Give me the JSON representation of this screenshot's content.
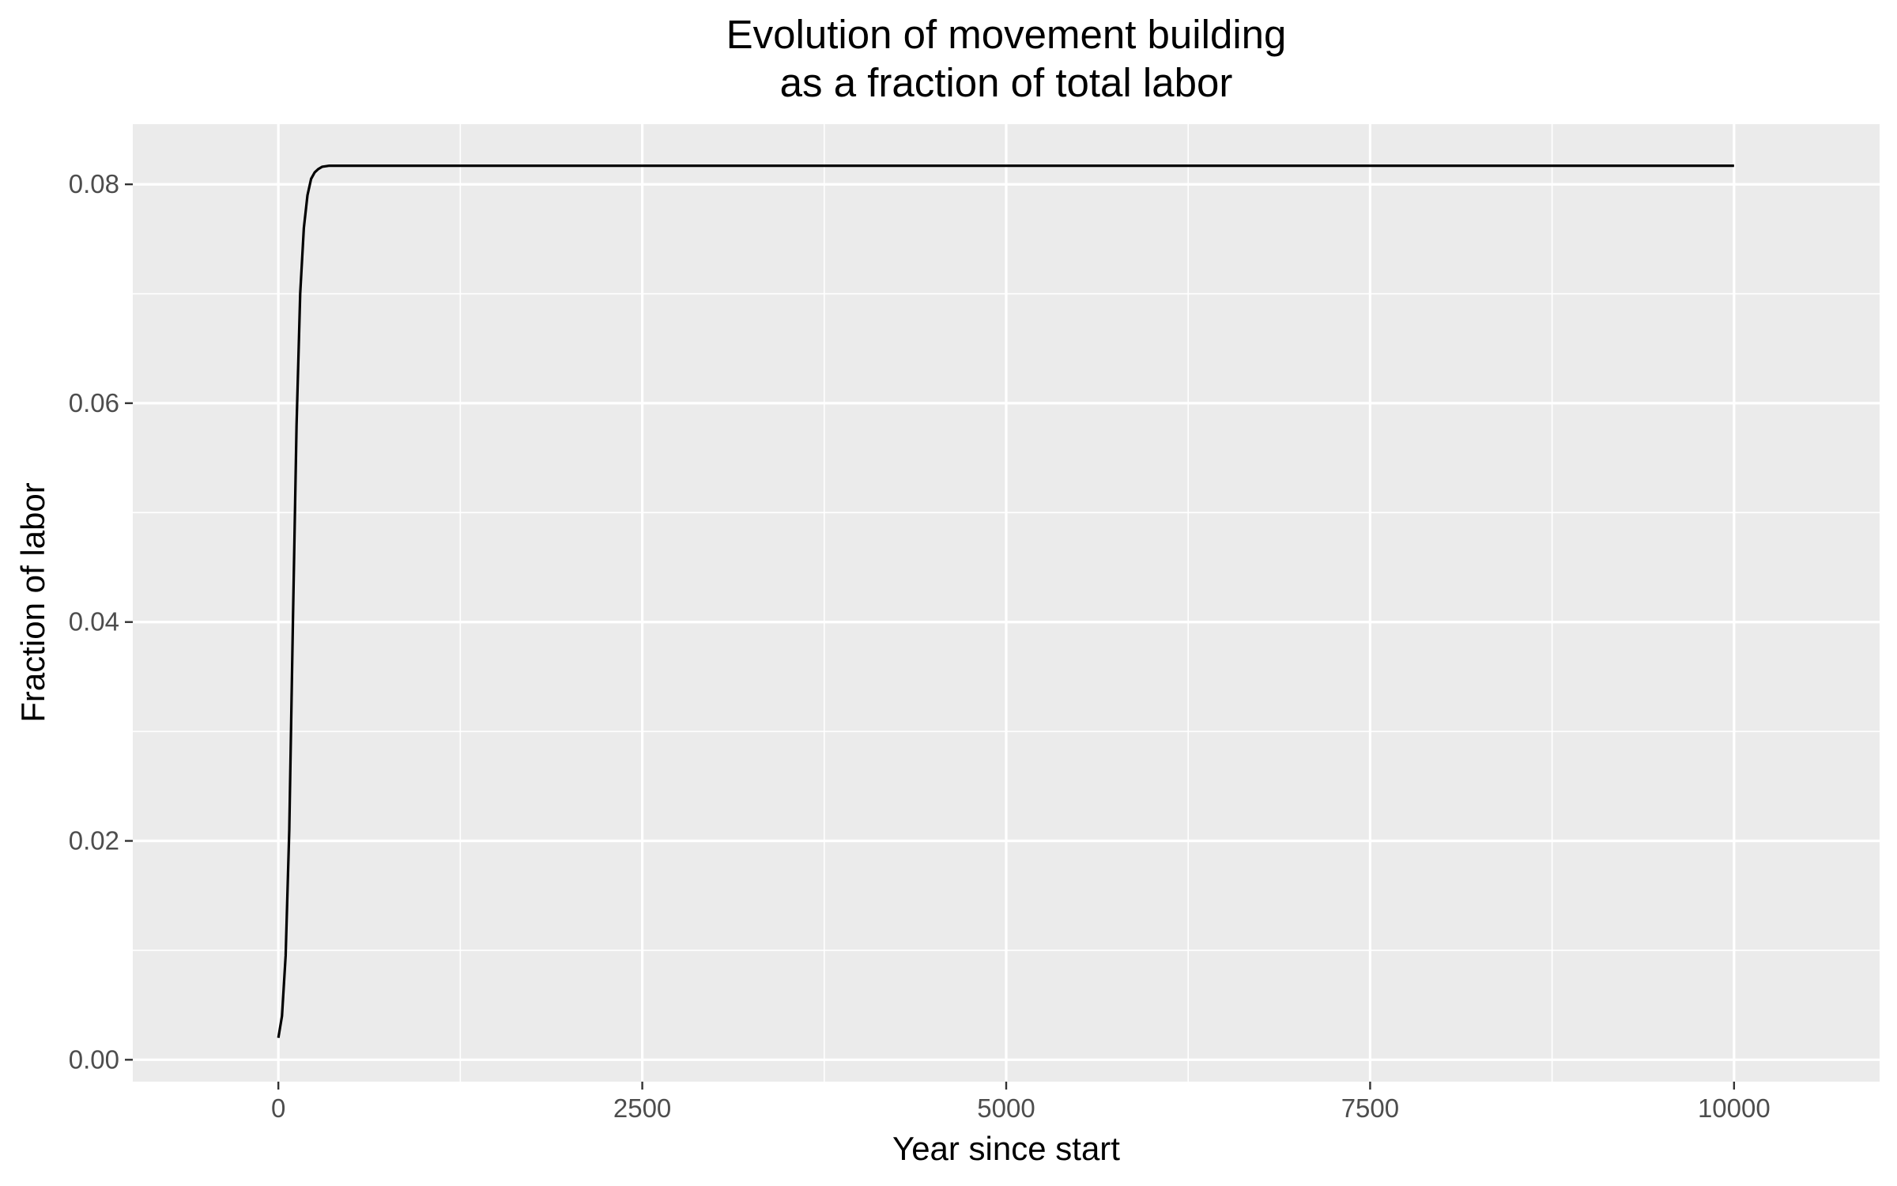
{
  "chart_data": {
    "type": "line",
    "title_lines": [
      "Evolution of movement building",
      "as a fraction of total labor"
    ],
    "xlabel": "Year since start",
    "ylabel": "Fraction of labor",
    "xlim": [
      -1000,
      11000
    ],
    "ylim": [
      -0.002,
      0.0855
    ],
    "x_ticks": [
      0,
      2500,
      5000,
      7500,
      10000
    ],
    "x_tick_labels": [
      "0",
      "2500",
      "5000",
      "7500",
      "10000"
    ],
    "x_minor_ticks": [
      1250,
      3750,
      6250,
      8750
    ],
    "y_ticks": [
      0,
      0.02,
      0.04,
      0.06,
      0.08
    ],
    "y_tick_labels": [
      "0.00",
      "0.02",
      "0.04",
      "0.06",
      "0.08"
    ],
    "y_minor_ticks": [
      0.01,
      0.03,
      0.05,
      0.07
    ],
    "grid": true,
    "panel_background": "#ebebeb",
    "grid_color": "#ffffff",
    "line_color": "#000000",
    "series": [
      {
        "x": [
          0,
          25,
          50,
          75,
          100,
          125,
          150,
          175,
          200,
          225,
          250,
          275,
          300,
          350,
          400,
          500,
          1000,
          2500,
          5000,
          7500,
          10000
        ],
        "values": [
          0.002,
          0.004,
          0.0095,
          0.021,
          0.04,
          0.058,
          0.07,
          0.076,
          0.079,
          0.0805,
          0.0811,
          0.0814,
          0.0816,
          0.0817,
          0.0817,
          0.0817,
          0.0817,
          0.0817,
          0.0817,
          0.0817,
          0.0817
        ]
      }
    ]
  }
}
